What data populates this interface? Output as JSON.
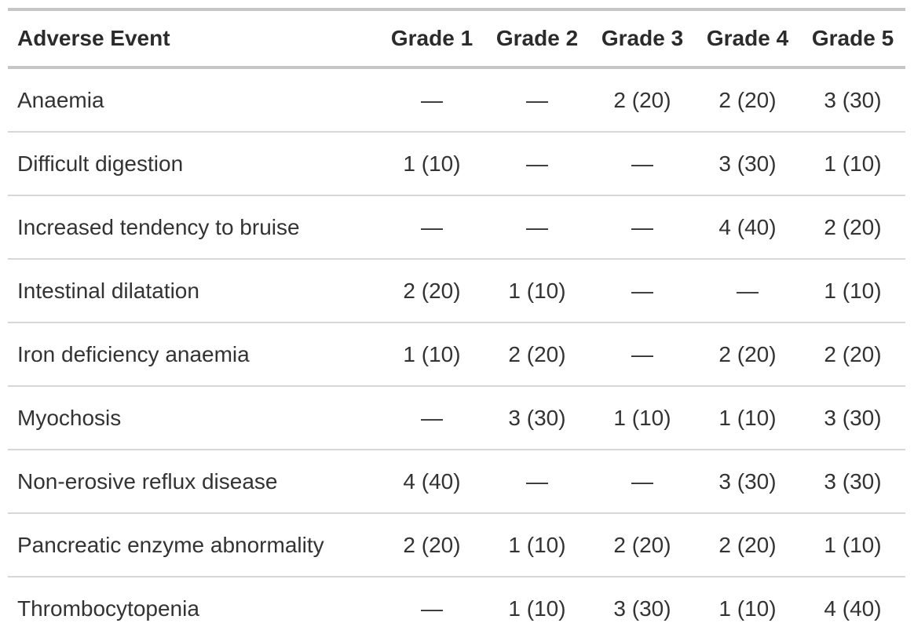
{
  "chart_data": {
    "type": "table",
    "columns": [
      "Adverse Event",
      "Grade 1",
      "Grade 2",
      "Grade 3",
      "Grade 4",
      "Grade 5"
    ],
    "rows": [
      {
        "event": "Anaemia",
        "values": [
          "—",
          "—",
          "2 (20)",
          "2 (20)",
          "3 (30)"
        ]
      },
      {
        "event": "Difficult digestion",
        "values": [
          "1 (10)",
          "—",
          "—",
          "3 (30)",
          "1 (10)"
        ]
      },
      {
        "event": "Increased tendency to bruise",
        "values": [
          "—",
          "—",
          "—",
          "4 (40)",
          "2 (20)"
        ]
      },
      {
        "event": "Intestinal dilatation",
        "values": [
          "2 (20)",
          "1 (10)",
          "—",
          "—",
          "1 (10)"
        ]
      },
      {
        "event": "Iron deficiency anaemia",
        "values": [
          "1 (10)",
          "2 (20)",
          "—",
          "2 (20)",
          "2 (20)"
        ]
      },
      {
        "event": "Myochosis",
        "values": [
          "—",
          "3 (30)",
          "1 (10)",
          "1 (10)",
          "3 (30)"
        ]
      },
      {
        "event": "Non-erosive reflux disease",
        "values": [
          "4 (40)",
          "—",
          "—",
          "3 (30)",
          "3 (30)"
        ]
      },
      {
        "event": "Pancreatic enzyme abnormality",
        "values": [
          "2 (20)",
          "1 (10)",
          "2 (20)",
          "2 (20)",
          "1 (10)"
        ]
      },
      {
        "event": "Thrombocytopenia",
        "values": [
          "—",
          "1 (10)",
          "3 (30)",
          "1 (10)",
          "4 (40)"
        ]
      }
    ]
  }
}
